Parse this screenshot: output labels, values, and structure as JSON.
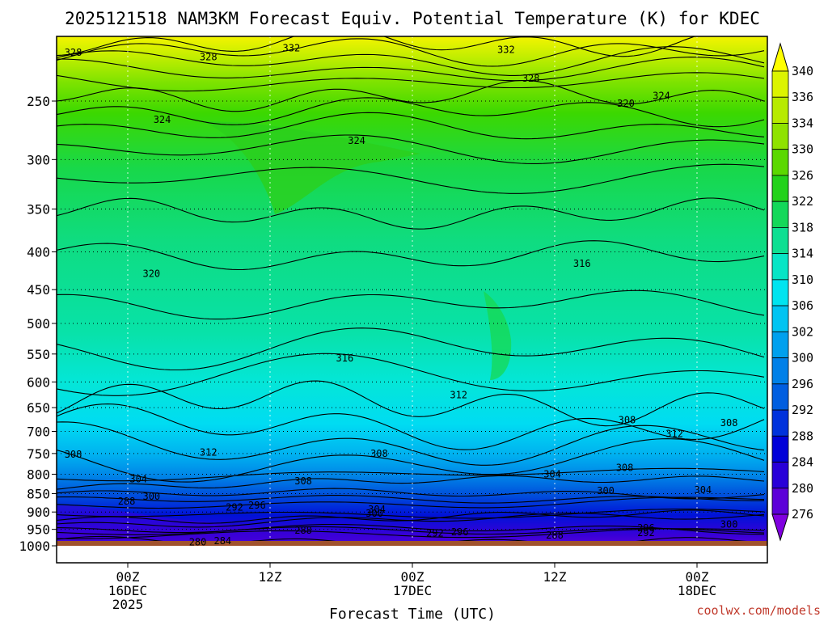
{
  "chart_data": {
    "type": "heatmap",
    "title": "2025121518 NAM3KM Forecast Equiv. Potential Temperature (K) for KDEC",
    "xlabel": "Forecast Time (UTC)",
    "ylabel": "",
    "y_ticks": [
      250,
      300,
      350,
      400,
      450,
      500,
      550,
      600,
      650,
      700,
      750,
      800,
      850,
      900,
      950,
      1000
    ],
    "ylim": [
      1000,
      200
    ],
    "x_ticks": [
      {
        "line1": "00Z",
        "line2": "16DEC",
        "line3": "2025"
      },
      {
        "line1": "12Z",
        "line2": "",
        "line3": ""
      },
      {
        "line1": "00Z",
        "line2": "17DEC",
        "line3": ""
      },
      {
        "line1": "12Z",
        "line2": "",
        "line3": ""
      },
      {
        "line1": "00Z",
        "line2": "18DEC",
        "line3": ""
      }
    ],
    "xlim_hours": [
      -6,
      54
    ],
    "x_tick_hours": [
      0,
      12,
      24,
      36,
      48
    ],
    "colorbar": {
      "levels": [
        340,
        336,
        334,
        330,
        326,
        322,
        318,
        314,
        310,
        306,
        302,
        300,
        296,
        292,
        288,
        284,
        280,
        276
      ],
      "colors": [
        "#ffff00",
        "#dcf400",
        "#b7ea00",
        "#8fe200",
        "#5bd800",
        "#22d21a",
        "#14d85a",
        "#0ddf92",
        "#07e5c6",
        "#00e4f0",
        "#00c4f2",
        "#00a0ee",
        "#0080e8",
        "#005ee0",
        "#0032dc",
        "#0000d8",
        "#2800d8",
        "#5c00d8",
        "#8000e0"
      ]
    },
    "contour_levels_labeled": [
      {
        "value": "328",
        "hour": -4.6,
        "p": 215
      },
      {
        "value": "328",
        "hour": 6.8,
        "p": 218
      },
      {
        "value": "332",
        "hour": 13.8,
        "p": 212
      },
      {
        "value": "332",
        "hour": 31.9,
        "p": 213
      },
      {
        "value": "328",
        "hour": 34.0,
        "p": 233
      },
      {
        "value": "324",
        "hour": 45.0,
        "p": 246
      },
      {
        "value": "320",
        "hour": 42.0,
        "p": 252
      },
      {
        "value": "324",
        "hour": 2.9,
        "p": 265
      },
      {
        "value": "324",
        "hour": 19.3,
        "p": 283
      },
      {
        "value": "320",
        "hour": 2.0,
        "p": 428
      },
      {
        "value": "316",
        "hour": 38.3,
        "p": 415
      },
      {
        "value": "316",
        "hour": 18.3,
        "p": 557
      },
      {
        "value": "312",
        "hour": 27.9,
        "p": 625
      },
      {
        "value": "308",
        "hour": -4.6,
        "p": 752
      },
      {
        "value": "312",
        "hour": 6.8,
        "p": 747
      },
      {
        "value": "308",
        "hour": 21.2,
        "p": 750
      },
      {
        "value": "308",
        "hour": 14.8,
        "p": 817
      },
      {
        "value": "304",
        "hour": 0.9,
        "p": 812
      },
      {
        "value": "300",
        "hour": 2.0,
        "p": 857
      },
      {
        "value": "288",
        "hour": -0.1,
        "p": 871
      },
      {
        "value": "292",
        "hour": 9.0,
        "p": 887
      },
      {
        "value": "296",
        "hour": 10.9,
        "p": 882
      },
      {
        "value": "304",
        "hour": 21.0,
        "p": 893
      },
      {
        "value": "300",
        "hour": 20.8,
        "p": 904
      },
      {
        "value": "288",
        "hour": 14.8,
        "p": 953
      },
      {
        "value": "280",
        "hour": 5.9,
        "p": 989
      },
      {
        "value": "284",
        "hour": 8.0,
        "p": 985
      },
      {
        "value": "292",
        "hour": 25.9,
        "p": 962
      },
      {
        "value": "296",
        "hour": 28.0,
        "p": 958
      },
      {
        "value": "288",
        "hour": 36.0,
        "p": 968
      },
      {
        "value": "304",
        "hour": 35.8,
        "p": 800
      },
      {
        "value": "308",
        "hour": 41.9,
        "p": 784
      },
      {
        "value": "300",
        "hour": 40.3,
        "p": 842
      },
      {
        "value": "308",
        "hour": 42.1,
        "p": 676
      },
      {
        "value": "312",
        "hour": 46.1,
        "p": 705
      },
      {
        "value": "308",
        "hour": 50.7,
        "p": 682
      },
      {
        "value": "304",
        "hour": 48.5,
        "p": 840
      },
      {
        "value": "296",
        "hour": 43.7,
        "p": 946
      },
      {
        "value": "292",
        "hour": 43.7,
        "p": 960
      },
      {
        "value": "300",
        "hour": 50.7,
        "p": 935
      }
    ]
  },
  "credit": "coolwx.com/models",
  "colors": {
    "ground": "#a0522d",
    "frame": "#000000",
    "credit": "#c0392b"
  }
}
